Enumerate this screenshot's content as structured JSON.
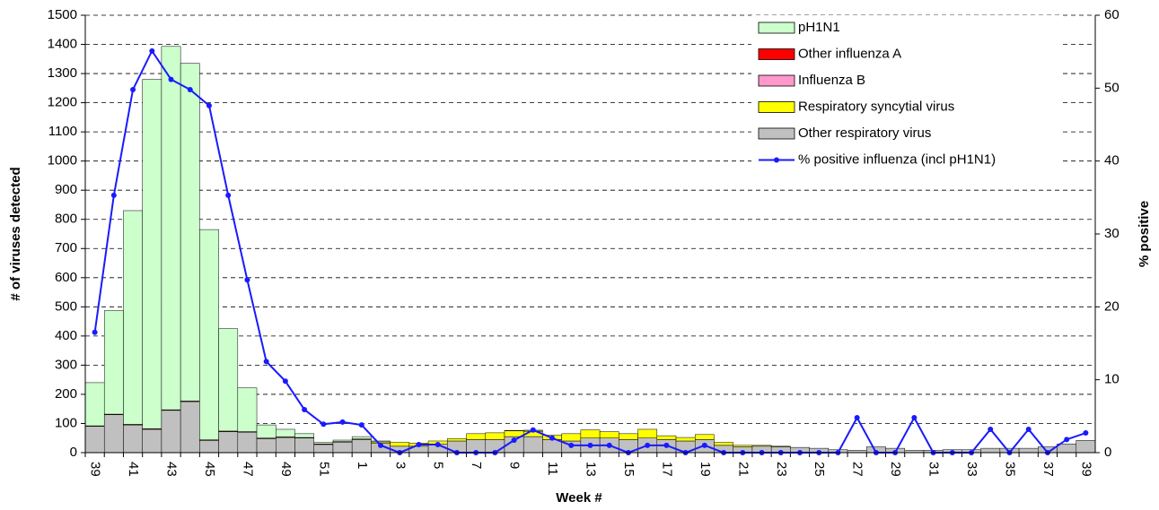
{
  "chart_data": {
    "type": "bar",
    "stacked": true,
    "x_label": "Week #",
    "y_label": "# of viruses detected",
    "y2_label": "% positive",
    "categories": [
      "39",
      null,
      "41",
      null,
      "43",
      null,
      "45",
      null,
      "47",
      null,
      "49",
      null,
      "51",
      null,
      "1",
      null,
      "3",
      null,
      "5",
      null,
      "7",
      null,
      "9",
      null,
      "11",
      null,
      "13",
      null,
      "15",
      null,
      "17",
      null,
      "19",
      null,
      "21",
      null,
      "23",
      null,
      "25",
      null,
      "27",
      null,
      "29",
      null,
      "31",
      null,
      "33",
      null,
      "35",
      null,
      "37",
      null,
      "39"
    ],
    "ylim": [
      0,
      1500
    ],
    "yticks": [
      0,
      100,
      200,
      300,
      400,
      500,
      600,
      700,
      800,
      900,
      1000,
      1100,
      1200,
      1300,
      1400,
      1500
    ],
    "y2lim": [
      0,
      60
    ],
    "y2ticks": [
      0,
      10,
      20,
      30,
      40,
      50,
      60
    ],
    "grid": true,
    "legend": "top-right",
    "series": [
      {
        "name": "pH1N1",
        "color": "#ccffcc",
        "values": [
          148,
          355,
          733,
          1198,
          1246,
          1158,
          721,
          351,
          150,
          45,
          26,
          13,
          5,
          5,
          8,
          3,
          0,
          0,
          0,
          0,
          0,
          0,
          0,
          3,
          0,
          0,
          0,
          0,
          0,
          0,
          0,
          0,
          0,
          0,
          0,
          0,
          0,
          0,
          0,
          0,
          0,
          0,
          0,
          0,
          0,
          0,
          0,
          0,
          0,
          0,
          0,
          0,
          0
        ]
      },
      {
        "name": "Other influenza A",
        "color": "#ff0000",
        "values": [
          2,
          2,
          2,
          2,
          2,
          2,
          2,
          2,
          2,
          2,
          2,
          2,
          2,
          2,
          2,
          0,
          0,
          0,
          0,
          0,
          0,
          0,
          0,
          0,
          0,
          0,
          0,
          0,
          0,
          0,
          0,
          0,
          0,
          0,
          0,
          0,
          0,
          0,
          0,
          0,
          0,
          0,
          0,
          0,
          0,
          0,
          0,
          0,
          0,
          0,
          0,
          0,
          0
        ]
      },
      {
        "name": "Influenza B",
        "color": "#ff99cc",
        "values": [
          0,
          0,
          0,
          0,
          0,
          0,
          0,
          0,
          0,
          0,
          0,
          0,
          0,
          0,
          0,
          0,
          0,
          0,
          0,
          0,
          0,
          0,
          1,
          1,
          0,
          0,
          0,
          0,
          0,
          0,
          0,
          0,
          0,
          0,
          0,
          0,
          0,
          0,
          0,
          0,
          0,
          0,
          0,
          0,
          0,
          0,
          0,
          0,
          0,
          0,
          0,
          0,
          0
        ]
      },
      {
        "name": "Respiratory syncytial virus",
        "color": "#ffff00",
        "values": [
          0,
          0,
          0,
          0,
          0,
          0,
          0,
          0,
          0,
          0,
          0,
          0,
          0,
          0,
          0,
          5,
          13,
          11,
          10,
          8,
          20,
          23,
          20,
          18,
          15,
          25,
          28,
          22,
          20,
          30,
          13,
          12,
          17,
          10,
          5,
          3,
          2,
          0,
          0,
          0,
          0,
          0,
          0,
          0,
          0,
          0,
          0,
          0,
          0,
          0,
          0,
          0,
          0
        ]
      },
      {
        "name": "Other respiratory virus",
        "color": "#c0c0c0",
        "values": [
          90,
          130,
          95,
          80,
          145,
          175,
          42,
          72,
          70,
          48,
          52,
          50,
          28,
          36,
          45,
          32,
          22,
          22,
          30,
          40,
          45,
          45,
          55,
          55,
          45,
          40,
          50,
          50,
          45,
          50,
          45,
          40,
          45,
          25,
          20,
          22,
          20,
          18,
          15,
          10,
          8,
          20,
          15,
          8,
          8,
          10,
          10,
          15,
          15,
          15,
          20,
          30,
          42
        ]
      },
      {
        "name": "% positive influenza (incl pH1N1)",
        "color": "#1a1aff",
        "type": "line",
        "axis": "y2",
        "values": [
          16.5,
          35.3,
          49.8,
          55.1,
          51.2,
          49.8,
          47.6,
          35.3,
          23.7,
          12.5,
          9.8,
          5.9,
          3.9,
          4.2,
          3.8,
          1.0,
          0,
          1.1,
          1.1,
          0,
          0,
          0,
          1.7,
          3.1,
          2.0,
          1.0,
          1.0,
          1.0,
          0,
          1.0,
          1.0,
          0,
          1.0,
          0,
          0,
          0,
          0,
          0,
          0,
          0,
          4.8,
          0,
          0,
          4.8,
          0,
          0,
          0,
          3.2,
          0,
          3.2,
          0,
          1.8,
          2.7
        ]
      }
    ]
  }
}
